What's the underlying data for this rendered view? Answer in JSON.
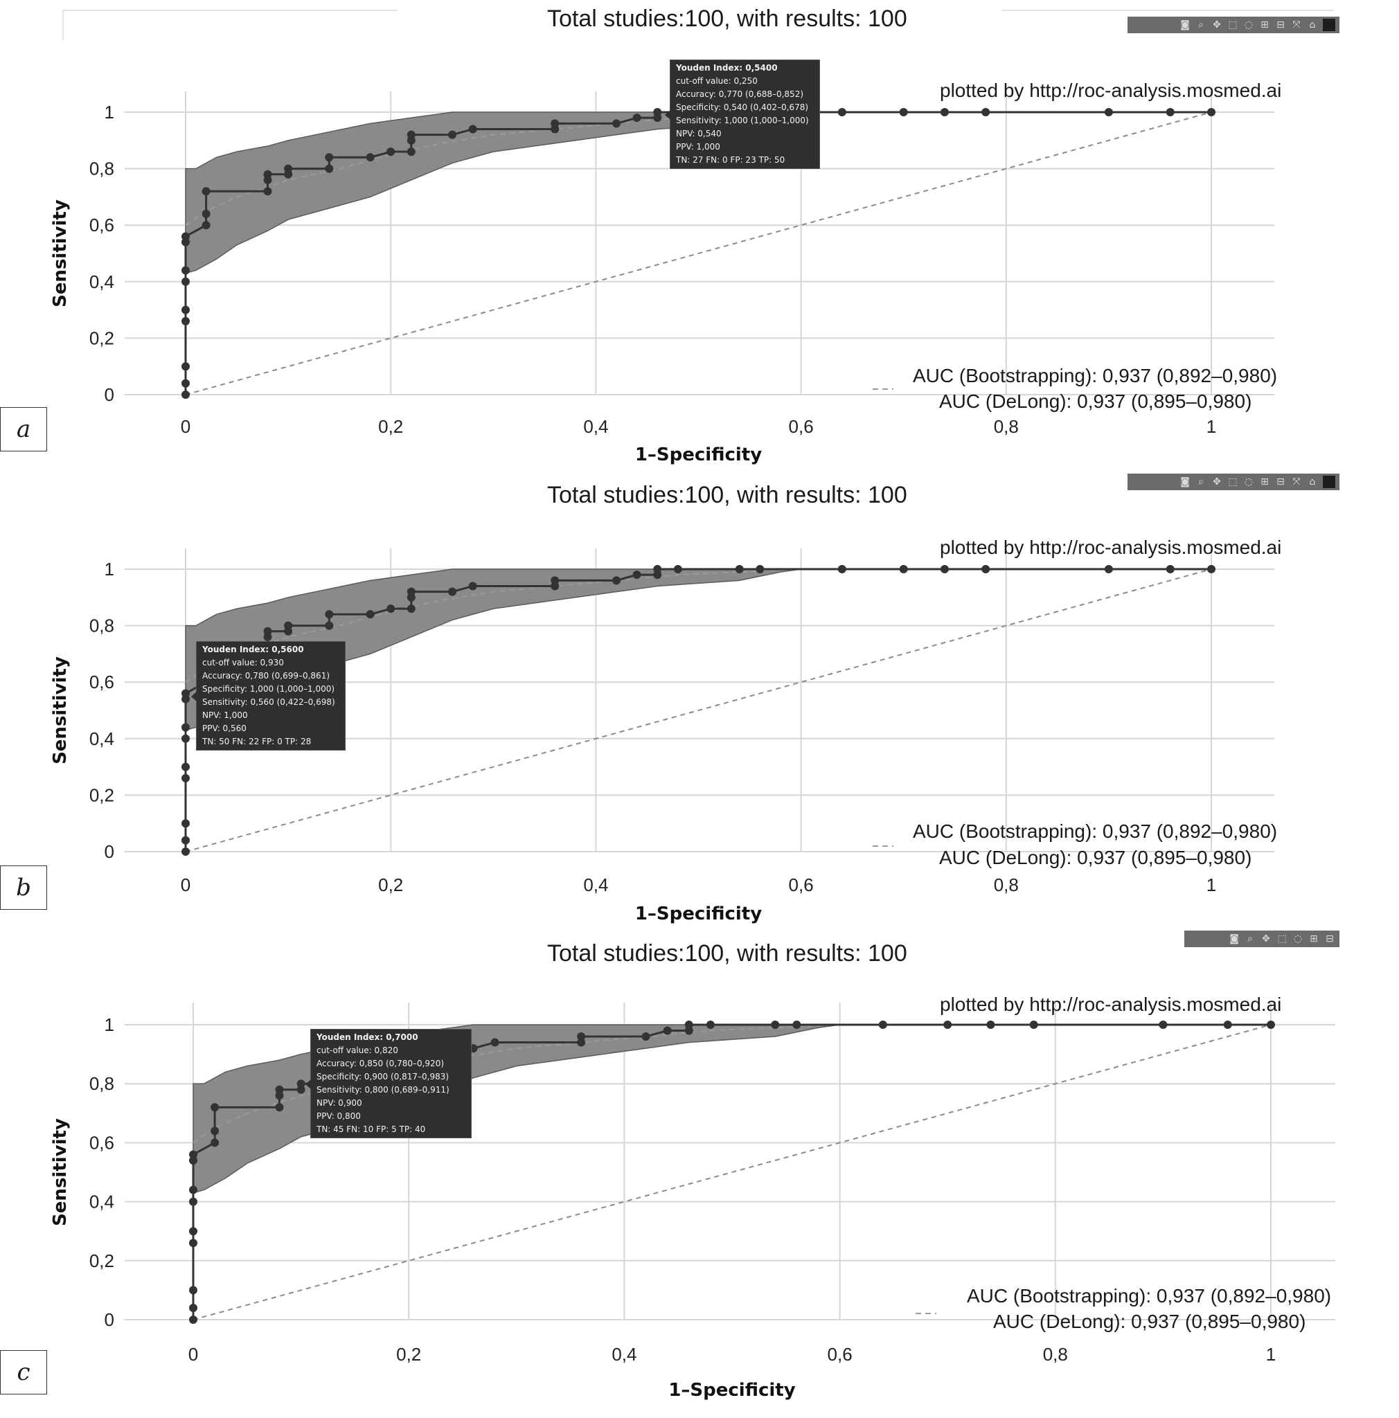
{
  "figure": {
    "panels": [
      {
        "label": "a",
        "title": "Total studies:100, with results: 100",
        "credit": "plotted by http://roc-analysis.mosmed.ai",
        "auc_bootstrap": "AUC (Bootstrapping): 0,937 (0,892–0,980)",
        "auc_delong": "AUC (DeLong): 0,937 (0,895–0,980)",
        "xlabel": "1–Specificity",
        "ylabel": "Sensitivity",
        "tooltip": {
          "title": "Youden Index: 0,5400",
          "lines": [
            "cut-off value: 0,250",
            "Accuracy: 0,770 (0,688–0,852)",
            "Specificity: 0,540 (0,402–0,678)",
            "Sensitivity: 1,000 (1,000–1,000)",
            "NPV: 0,540",
            "PPV: 1,000",
            "TN: 27 FN: 0 FP: 23 TP: 50"
          ]
        }
      },
      {
        "label": "b",
        "title": "Total studies:100, with results: 100",
        "credit": "plotted by http://roc-analysis.mosmed.ai",
        "auc_bootstrap": "AUC (Bootstrapping): 0,937 (0,892–0,980)",
        "auc_delong": "AUC (DeLong): 0,937 (0,895–0,980)",
        "xlabel": "1–Specificity",
        "ylabel": "Sensitivity",
        "tooltip": {
          "title": "Youden Index: 0,5600",
          "lines": [
            "cut-off value: 0,930",
            "Accuracy: 0,780 (0,699–0,861)",
            "Specificity: 1,000 (1,000–1,000)",
            "Sensitivity: 0,560 (0,422–0,698)",
            "NPV: 1,000",
            "PPV: 0,560",
            "TN: 50 FN: 22 FP: 0 TP: 28"
          ]
        }
      },
      {
        "label": "c",
        "title": "Total studies:100, with results: 100",
        "credit": "plotted by http://roc-analysis.mosmed.ai",
        "auc_bootstrap": "AUC (Bootstrapping): 0,937 (0,892–0,980)",
        "auc_delong": "AUC (DeLong): 0,937 (0,895–0,980)",
        "xlabel": "1–Specificity",
        "ylabel": "Sensitivity",
        "tooltip": {
          "title": "Youden Index: 0,7000",
          "lines": [
            "cut-off value: 0,820",
            "Accuracy: 0,850 (0,780–0,920)",
            "Specificity: 0,900 (0,817–0,983)",
            "Sensitivity: 0,800 (0,689–0,911)",
            "NPV: 0,900",
            "PPV: 0,800",
            "TN: 45 FN: 10 FP: 5 TP: 40"
          ]
        }
      }
    ],
    "modebar_icons": [
      "camera-icon",
      "zoom-icon",
      "pan-icon",
      "box-select-icon",
      "lasso-icon",
      "zoom-in-icon",
      "zoom-out-icon",
      "autoscale-icon",
      "home-icon",
      "plotly-logo-icon"
    ],
    "colors": {
      "curve": "#333333",
      "band": "#8a8a8a",
      "grid": "#d6d6d6",
      "diagonal": "#8a8a8a",
      "tooltip": "#2f2f2f"
    }
  },
  "chart_data": {
    "type": "line",
    "x_ticks": [
      "0",
      "0,2",
      "0,4",
      "0,6",
      "0,8",
      "1"
    ],
    "y_ticks": [
      "0",
      "0,2",
      "0,4",
      "0,6",
      "0,8",
      "1"
    ],
    "xlim": [
      0,
      1
    ],
    "ylim": [
      0,
      1
    ],
    "grid": true,
    "series": [
      {
        "x": [
          0,
          0,
          0,
          0,
          0,
          0,
          0,
          0,
          0,
          0.02,
          0.02,
          0.02,
          0.08,
          0.08,
          0.08,
          0.1,
          0.1,
          0.14,
          0.14,
          0.18,
          0.2,
          0.22,
          0.22,
          0.22,
          0.26,
          0.28,
          0.36,
          0.36,
          0.42,
          0.44,
          0.46,
          0.46,
          0.48,
          0.54,
          0.56,
          0.64,
          0.7,
          0.74,
          0.78,
          0.9,
          0.96,
          1.0
        ],
        "y": [
          0,
          0.04,
          0.1,
          0.26,
          0.3,
          0.4,
          0.44,
          0.54,
          0.56,
          0.6,
          0.64,
          0.72,
          0.72,
          0.76,
          0.78,
          0.78,
          0.8,
          0.8,
          0.84,
          0.84,
          0.86,
          0.86,
          0.9,
          0.92,
          0.92,
          0.94,
          0.94,
          0.96,
          0.96,
          0.98,
          0.98,
          1.0,
          1.0,
          1.0,
          1.0,
          1.0,
          1.0,
          1.0,
          1.0,
          1.0,
          1.0,
          1.0
        ]
      },
      {
        "x": [
          0,
          0.01,
          0.03,
          0.05,
          0.08,
          0.1,
          0.14,
          0.18,
          0.22,
          0.26,
          0.3,
          0.36,
          0.42,
          0.46,
          0.5,
          0.54,
          0.58,
          0.6,
          0.7,
          0.8,
          0.9,
          1.0
        ],
        "y": [
          0.8,
          0.8,
          0.84,
          0.86,
          0.88,
          0.9,
          0.93,
          0.96,
          0.98,
          1.0,
          1.0,
          1.0,
          1.0,
          1.0,
          1.0,
          1.0,
          1.0,
          1.0,
          1.0,
          1.0,
          1.0,
          1.0
        ]
      },
      {
        "x": [
          1.0,
          0.9,
          0.8,
          0.7,
          0.6,
          0.58,
          0.54,
          0.5,
          0.46,
          0.42,
          0.36,
          0.3,
          0.26,
          0.22,
          0.18,
          0.14,
          0.1,
          0.08,
          0.05,
          0.03,
          0.01,
          0
        ],
        "y": [
          1.0,
          1.0,
          1.0,
          1.0,
          1.0,
          0.99,
          0.96,
          0.95,
          0.94,
          0.92,
          0.89,
          0.86,
          0.82,
          0.76,
          0.7,
          0.66,
          0.62,
          0.58,
          0.53,
          0.48,
          0.44,
          0.43
        ]
      },
      {
        "x": [
          0,
          0.02,
          0.05,
          0.1,
          0.15,
          0.2,
          0.25,
          0.3,
          0.36,
          0.42,
          0.48,
          0.54,
          0.6,
          0.7,
          0.8,
          1.0
        ],
        "y": [
          0.6,
          0.65,
          0.7,
          0.76,
          0.8,
          0.85,
          0.89,
          0.92,
          0.94,
          0.96,
          0.98,
          0.99,
          1.0,
          1.0,
          1.0,
          1.0
        ]
      },
      {
        "x": [
          0,
          1
        ],
        "y": [
          0,
          1
        ]
      }
    ]
  }
}
